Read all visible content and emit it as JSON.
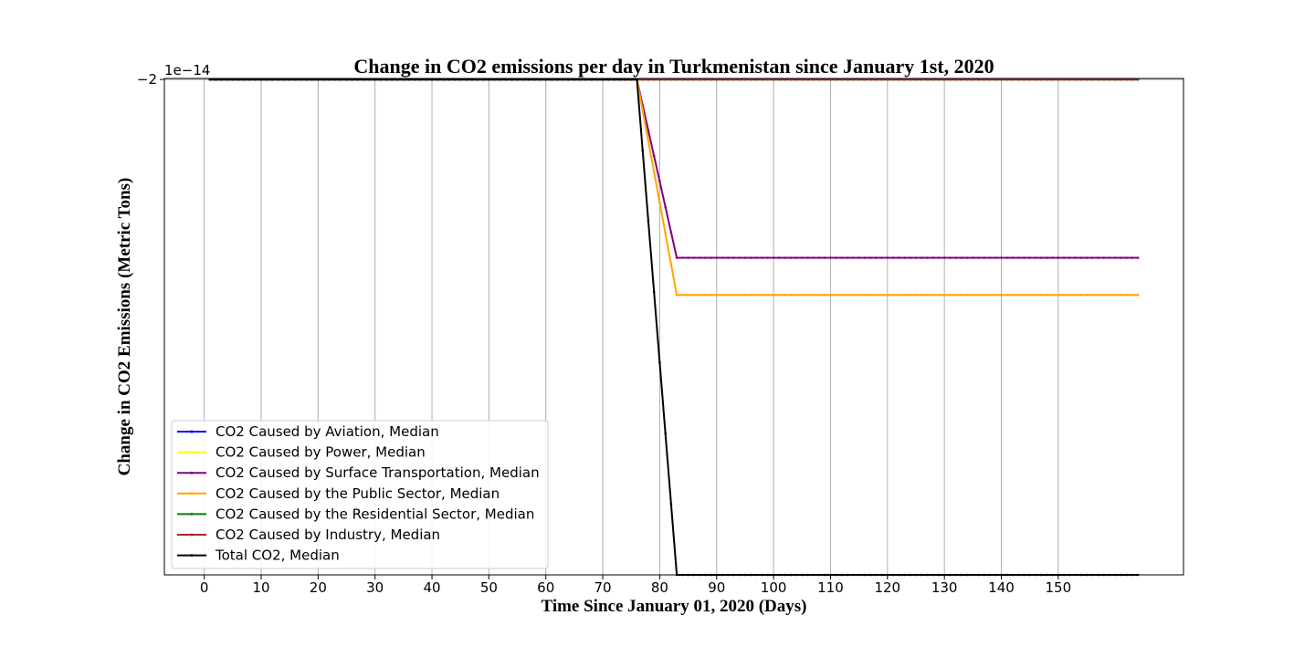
{
  "chart_data": {
    "type": "line",
    "title": "Change in CO2 emissions per day in Turkmenistan since January 1st, 2020",
    "xlabel": "Time Since January 01, 2020 (Days)",
    "ylabel": "Change in CO2 Emissions (Metric Tons)",
    "offset_text": "1e−14",
    "x_ticks": [
      0,
      10,
      20,
      30,
      40,
      50,
      60,
      70,
      80,
      90,
      100,
      110,
      120,
      130,
      140,
      150
    ],
    "x_tick_labels": [
      "0",
      "10",
      "20",
      "30",
      "40",
      "50",
      "60",
      "70",
      "80",
      "90",
      "100",
      "110",
      "120",
      "130",
      "140",
      "150"
    ],
    "xlim": [
      -7,
      172
    ],
    "y_ticks": [
      -2
    ],
    "y_tick_labels": [
      "−2"
    ],
    "ylim": [
      -2.2,
      -1.9996
    ],
    "grid": true,
    "legend_position": "lower-left",
    "series": [
      {
        "name": "CO2 Caused by Aviation, Median",
        "color": "#0000ff",
        "points": [
          [
            1,
            -2.0
          ],
          [
            76,
            -2.0
          ],
          [
            83,
            -2.0
          ],
          [
            164,
            -2.0
          ]
        ]
      },
      {
        "name": "CO2 Caused by Power, Median",
        "color": "#ffff00",
        "points": [
          [
            1,
            -2.0
          ],
          [
            76,
            -2.0
          ],
          [
            83,
            -2.0
          ],
          [
            164,
            -2.0
          ]
        ]
      },
      {
        "name": "CO2 Caused by Surface Transportation, Median",
        "color": "#800080",
        "points": [
          [
            1,
            -2.0
          ],
          [
            76,
            -2.0
          ],
          [
            83,
            -2.072
          ],
          [
            164,
            -2.072
          ]
        ]
      },
      {
        "name": "CO2 Caused by the Public Sector, Median",
        "color": "#ffa500",
        "points": [
          [
            1,
            -2.0
          ],
          [
            76,
            -2.0
          ],
          [
            83,
            -2.087
          ],
          [
            164,
            -2.087
          ]
        ]
      },
      {
        "name": "CO2 Caused by the Residential Sector, Median",
        "color": "#008000",
        "points": [
          [
            1,
            -2.0
          ],
          [
            76,
            -2.0
          ],
          [
            83,
            -2.0
          ],
          [
            164,
            -2.0
          ]
        ]
      },
      {
        "name": "CO2 Caused by Industry, Median",
        "color": "#a52a2a",
        "points": [
          [
            1,
            -2.0
          ],
          [
            76,
            -2.0
          ],
          [
            83,
            -2.0
          ],
          [
            164,
            -2.0
          ]
        ]
      },
      {
        "name": "Total CO2, Median",
        "color": "#000000",
        "points": [
          [
            1,
            -2.0
          ],
          [
            76,
            -2.0
          ],
          [
            83,
            -2.2
          ],
          [
            164,
            -2.2
          ]
        ]
      }
    ]
  }
}
